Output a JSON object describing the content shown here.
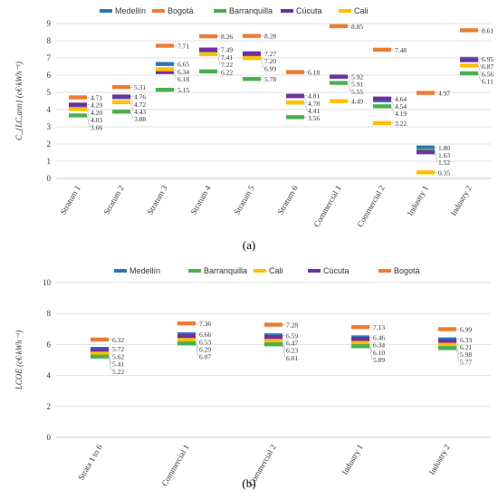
{
  "colors": {
    "Medellín": "#2E75B6",
    "Bogotá": "#ED7D31",
    "Barranquilla": "#4CAF50",
    "Cúcuta": "#7030A0",
    "Cali": "#FFC000"
  },
  "chart_data": [
    {
      "type": "scatter",
      "marker": "horizontal-bar",
      "panel_label": "(a)",
      "ylabel": "C_{LC,ann} (c€·kWh⁻¹)",
      "ylim": [
        0,
        9
      ],
      "yticks": [
        0,
        1,
        2,
        3,
        4,
        5,
        6,
        7,
        8,
        9
      ],
      "grid": true,
      "legend_position": "top",
      "legend": [
        "Medellín",
        "Bogotá",
        "Barranquilla",
        "Cúcuta",
        "Cali"
      ],
      "categories": [
        "Stratum 1",
        "Stratum 2",
        "Stratum 3",
        "Stratum 4",
        "Stratum 5",
        "Stratum 6",
        "Commercial 1",
        "Commercial 2",
        "Industry 1",
        "Industry 2"
      ],
      "series": [
        {
          "name": "Medellín",
          "values": [
            4.2,
            4.72,
            6.65,
            7.41,
            7.2,
            4.81,
            5.92,
            4.54,
            1.8,
            6.95
          ]
        },
        {
          "name": "Bogotá",
          "values": [
            4.71,
            5.31,
            7.71,
            8.26,
            8.28,
            6.18,
            8.85,
            7.48,
            4.97,
            8.61
          ]
        },
        {
          "name": "Barranquilla",
          "values": [
            3.66,
            3.88,
            5.15,
            6.22,
            5.78,
            3.56,
            5.55,
            4.19,
            1.63,
            6.11
          ]
        },
        {
          "name": "Cúcuta",
          "values": [
            4.29,
            4.76,
            6.18,
            7.49,
            7.27,
            4.78,
            5.91,
            4.64,
            1.52,
            6.87
          ]
        },
        {
          "name": "Cali",
          "values": [
            4.03,
            4.43,
            6.34,
            7.22,
            6.99,
            4.41,
            4.49,
            3.22,
            0.35,
            6.56
          ]
        }
      ],
      "annotations": [
        [
          "4.71",
          "4.29",
          "4.20",
          "4.03",
          "3.66"
        ],
        [
          "5.31",
          "4.76",
          "4.72",
          "4.43",
          "3.88"
        ],
        [
          "7.71",
          "6.65",
          "6.34",
          "6.18",
          "5.15"
        ],
        [
          "8.26",
          "7.49",
          "7.41",
          "7.22",
          "6.22"
        ],
        [
          "8.28",
          "7.27",
          "7.20",
          "6.99",
          "5.78"
        ],
        [
          "6.18",
          "4.81",
          "4.78",
          "4.41",
          "3.56"
        ],
        [
          "8.85",
          "5.92",
          "5.91",
          "5.55",
          "4.49"
        ],
        [
          "4.64",
          "4.54",
          "4.19",
          "3.22",
          "7.48"
        ],
        [
          "4.97",
          "1.80",
          "1.63",
          "1.52",
          "0.35"
        ],
        [
          "8.61",
          "6.95",
          "6.87",
          "6.56",
          "6.11"
        ]
      ]
    },
    {
      "type": "scatter",
      "marker": "horizontal-bar",
      "panel_label": "(b)",
      "ylabel": "LCOE (c€·kWh⁻¹)",
      "ylim": [
        0,
        10
      ],
      "yticks": [
        0,
        2,
        4,
        6,
        8,
        10
      ],
      "grid": true,
      "legend_position": "top",
      "legend": [
        "Medellín",
        "Barranquilla",
        "Cali",
        "Cúcuta",
        "Bogotá"
      ],
      "categories": [
        "Strata 1 to 6",
        "Commercial 1",
        "Commercial 2",
        "Industry 1",
        "Industry 2"
      ],
      "series": [
        {
          "name": "Bogotá",
          "values": [
            6.32,
            7.36,
            7.28,
            7.13,
            6.99
          ]
        },
        {
          "name": "Medellín",
          "values": [
            5.72,
            6.66,
            6.59,
            6.46,
            6.33
          ]
        },
        {
          "name": "Cúcuta",
          "values": [
            5.62,
            6.53,
            6.47,
            6.34,
            6.21
          ]
        },
        {
          "name": "Cali",
          "values": [
            5.41,
            6.29,
            6.23,
            6.1,
            5.98
          ]
        },
        {
          "name": "Barranquilla",
          "values": [
            5.22,
            6.07,
            6.01,
            5.89,
            5.77
          ]
        }
      ],
      "annotations": [
        [
          "6.32",
          "5.72",
          "5.62",
          "5.41",
          "5.22"
        ],
        [
          "7.36",
          "6.66",
          "6.53",
          "6.29",
          "6.07"
        ],
        [
          "7.28",
          "6.59",
          "6.47",
          "6.23",
          "6.01"
        ],
        [
          "7.13",
          "6.46",
          "6.34",
          "6.10",
          "5.89"
        ],
        [
          "6.99",
          "6.33",
          "6.21",
          "5.98",
          "5.77"
        ]
      ]
    }
  ]
}
